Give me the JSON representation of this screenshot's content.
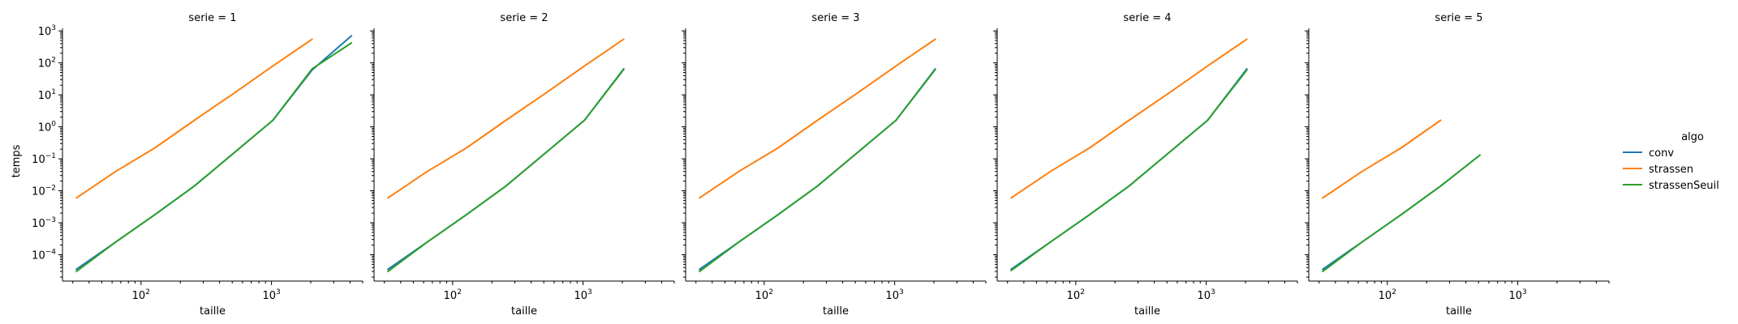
{
  "chart_data": {
    "type": "line",
    "layout": "facet-grid",
    "facet_variable": "serie",
    "xlabel": "taille",
    "ylabel": "temps",
    "xscale": "log",
    "yscale": "log",
    "xlim": [
      25,
      5000
    ],
    "ylim": [
      1.5e-05,
      1200
    ],
    "x_ticks": [
      {
        "base": "10",
        "exp": "2",
        "value": 100
      },
      {
        "base": "10",
        "exp": "3",
        "value": 1000
      }
    ],
    "y_ticks": [
      {
        "base": "10",
        "exp": "−4",
        "value": 0.0001
      },
      {
        "base": "10",
        "exp": "−3",
        "value": 0.001
      },
      {
        "base": "10",
        "exp": "−2",
        "value": 0.01
      },
      {
        "base": "10",
        "exp": "−1",
        "value": 0.1
      },
      {
        "base": "10",
        "exp": "0",
        "value": 1
      },
      {
        "base": "10",
        "exp": "1",
        "value": 10
      },
      {
        "base": "10",
        "exp": "2",
        "value": 100
      },
      {
        "base": "10",
        "exp": "3",
        "value": 1000
      }
    ],
    "grid": false,
    "legend": {
      "title": "algo",
      "placement": "right",
      "entries": [
        {
          "name": "conv",
          "color": "#1f77b4"
        },
        {
          "name": "strassen",
          "color": "#ff7f0e"
        },
        {
          "name": "strassenSeuil",
          "color": "#2ca02c"
        }
      ]
    },
    "panels": [
      {
        "title": "serie = 1",
        "series": [
          {
            "name": "conv",
            "color": "#1f77b4",
            "x": [
              32,
              64,
              128,
              256,
              512,
              1024,
              2048,
              4096
            ],
            "y": [
              3.5e-05,
              0.00025,
              0.0018,
              0.014,
              0.15,
              1.6,
              60,
              700
            ]
          },
          {
            "name": "strassen",
            "color": "#ff7f0e",
            "x": [
              32,
              64,
              128,
              256,
              512,
              1024,
              2048
            ],
            "y": [
              0.006,
              0.04,
              0.22,
              1.6,
              11,
              80,
              550
            ]
          },
          {
            "name": "strassenSeuil",
            "color": "#2ca02c",
            "x": [
              32,
              64,
              128,
              256,
              512,
              1024,
              2048,
              4096
            ],
            "y": [
              3e-05,
              0.00025,
              0.0018,
              0.014,
              0.15,
              1.6,
              65,
              420
            ]
          }
        ]
      },
      {
        "title": "serie = 2",
        "series": [
          {
            "name": "conv",
            "color": "#1f77b4",
            "x": [
              32,
              64,
              128,
              256,
              512,
              1024,
              2048
            ],
            "y": [
              3.5e-05,
              0.00025,
              0.0018,
              0.014,
              0.15,
              1.6,
              65
            ]
          },
          {
            "name": "strassen",
            "color": "#ff7f0e",
            "x": [
              32,
              64,
              128,
              256,
              512,
              1024,
              2048
            ],
            "y": [
              0.006,
              0.04,
              0.22,
              1.6,
              11,
              80,
              550
            ]
          },
          {
            "name": "strassenSeuil",
            "color": "#2ca02c",
            "x": [
              32,
              64,
              128,
              256,
              512,
              1024,
              2048
            ],
            "y": [
              3e-05,
              0.00025,
              0.0018,
              0.014,
              0.15,
              1.6,
              62
            ]
          }
        ]
      },
      {
        "title": "serie = 3",
        "series": [
          {
            "name": "conv",
            "color": "#1f77b4",
            "x": [
              32,
              64,
              128,
              256,
              512,
              1024,
              2048
            ],
            "y": [
              3.5e-05,
              0.00025,
              0.0018,
              0.014,
              0.15,
              1.6,
              65
            ]
          },
          {
            "name": "strassen",
            "color": "#ff7f0e",
            "x": [
              32,
              64,
              128,
              256,
              512,
              1024,
              2048
            ],
            "y": [
              0.006,
              0.04,
              0.22,
              1.6,
              11,
              80,
              550
            ]
          },
          {
            "name": "strassenSeuil",
            "color": "#2ca02c",
            "x": [
              32,
              64,
              128,
              256,
              512,
              1024,
              2048
            ],
            "y": [
              3e-05,
              0.00025,
              0.0018,
              0.014,
              0.15,
              1.6,
              62
            ]
          }
        ]
      },
      {
        "title": "serie = 4",
        "series": [
          {
            "name": "conv",
            "color": "#1f77b4",
            "x": [
              32,
              64,
              128,
              256,
              512,
              1024,
              2048
            ],
            "y": [
              3.5e-05,
              0.00025,
              0.0018,
              0.014,
              0.15,
              1.6,
              65
            ]
          },
          {
            "name": "strassen",
            "color": "#ff7f0e",
            "x": [
              32,
              64,
              128,
              256,
              512,
              1024,
              2048
            ],
            "y": [
              0.006,
              0.04,
              0.22,
              1.6,
              11,
              80,
              550
            ]
          },
          {
            "name": "strassenSeuil",
            "color": "#2ca02c",
            "x": [
              32,
              64,
              128,
              256,
              512,
              1024,
              2048
            ],
            "y": [
              3.2e-05,
              0.00025,
              0.0018,
              0.014,
              0.15,
              1.6,
              60
            ]
          }
        ]
      },
      {
        "title": "serie = 5",
        "series": [
          {
            "name": "conv",
            "color": "#1f77b4",
            "x": [
              32,
              64,
              128,
              256,
              512
            ],
            "y": [
              3.5e-05,
              0.00025,
              0.0018,
              0.014,
              0.13
            ]
          },
          {
            "name": "strassen",
            "color": "#ff7f0e",
            "x": [
              32,
              64,
              128,
              256
            ],
            "y": [
              0.006,
              0.04,
              0.22,
              1.6
            ]
          },
          {
            "name": "strassenSeuil",
            "color": "#2ca02c",
            "x": [
              32,
              64,
              128,
              256,
              512
            ],
            "y": [
              3e-05,
              0.00025,
              0.0018,
              0.014,
              0.13
            ]
          }
        ]
      }
    ]
  }
}
